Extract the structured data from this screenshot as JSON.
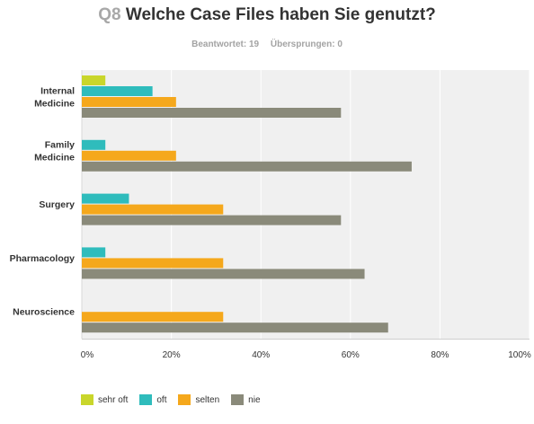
{
  "header": {
    "question_number": "Q8",
    "question_text": "Welche Case Files haben Sie genutzt?",
    "answered": "Beantwortet: 19",
    "skipped": "Übersprungen: 0"
  },
  "chart_data": {
    "type": "bar",
    "orientation": "horizontal",
    "categories": [
      [
        "Internal",
        "Medicine"
      ],
      [
        "Family",
        "Medicine"
      ],
      [
        "Surgery"
      ],
      [
        "Pharmacology"
      ],
      [
        "Neuroscience"
      ]
    ],
    "series": [
      {
        "name": "sehr oft",
        "color": "#c9d62b",
        "values": [
          5.26,
          0,
          0,
          0,
          0
        ]
      },
      {
        "name": "oft",
        "color": "#2fbcbc",
        "values": [
          15.79,
          5.26,
          10.53,
          5.26,
          0
        ]
      },
      {
        "name": "selten",
        "color": "#f5a81c",
        "values": [
          21.05,
          21.05,
          31.58,
          31.58,
          31.58
        ]
      },
      {
        "name": "nie",
        "color": "#8a8a7a",
        "values": [
          57.89,
          73.68,
          57.89,
          63.16,
          68.42
        ]
      }
    ],
    "xlim": [
      0,
      100
    ],
    "x_ticks": [
      "0%",
      "20%",
      "40%",
      "60%",
      "80%",
      "100%"
    ],
    "grid": true,
    "legend_position": "bottom-left",
    "plot_background": "#f0f0f0",
    "grid_color": "#ffffff"
  }
}
